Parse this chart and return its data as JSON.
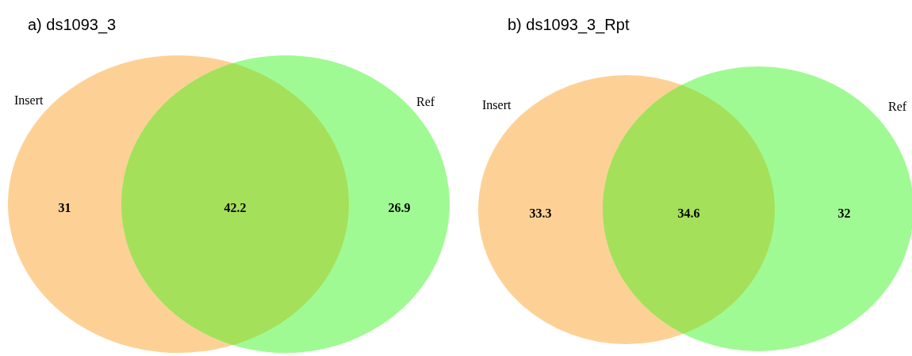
{
  "chart_data": [
    {
      "type": "other",
      "title": "a) ds1093_3",
      "categories": [
        "Insert",
        null,
        "Ref"
      ],
      "values": [
        31,
        42.2,
        26.9
      ],
      "colors": [
        "#fdd196",
        "#a5e05a",
        "#9ffa93"
      ],
      "data_labels": true
    },
    {
      "type": "other",
      "title": "b) ds1093_3_Rpt",
      "categories": [
        "Insert",
        null,
        "Ref"
      ],
      "values": [
        33.3,
        34.6,
        32
      ],
      "colors": [
        "#fdd196",
        "#a5e05a",
        "#9ffa93"
      ],
      "data_labels": true
    }
  ]
}
